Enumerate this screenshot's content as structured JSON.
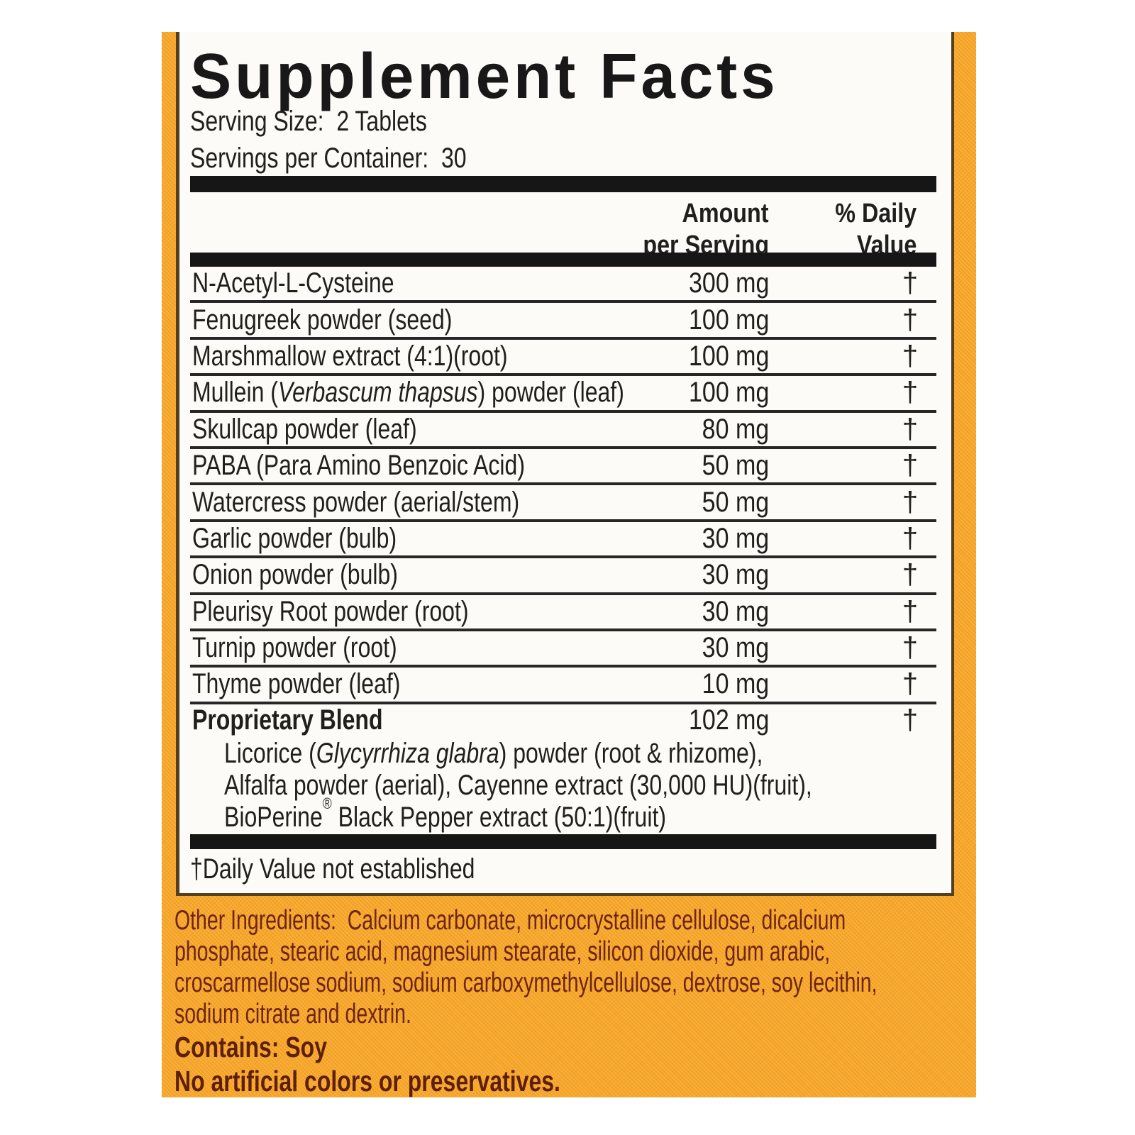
{
  "label": {
    "title": "Supplement Facts",
    "serving_size_line": "Serving Size:  2 Tablets",
    "servings_per_container_line": "Servings per Container:  30",
    "columns": {
      "amount_line1": "Amount",
      "amount_line2": "per Serving",
      "dv_line1": "% Daily",
      "dv_line2": "Value"
    },
    "rows": [
      {
        "pre": "N-Acetyl-L-Cysteine",
        "amt": "300 mg",
        "dv": "†"
      },
      {
        "pre": "Fenugreek powder (seed)",
        "amt": "100 mg",
        "dv": "†"
      },
      {
        "pre": "Marshmallow extract (4:1)(root)",
        "amt": "100 mg",
        "dv": "†"
      },
      {
        "pre": "Mullein (",
        "it": "Verbascum thapsus",
        "post": ") powder (leaf)",
        "amt": "100 mg",
        "dv": "†"
      },
      {
        "pre": "Skullcap powder (leaf)",
        "amt": "80 mg",
        "dv": "†"
      },
      {
        "pre": "PABA (Para Amino Benzoic Acid)",
        "amt": "50 mg",
        "dv": "†"
      },
      {
        "pre": "Watercress powder (aerial/stem)",
        "amt": "50 mg",
        "dv": "†"
      },
      {
        "pre": "Garlic powder (bulb)",
        "amt": "30 mg",
        "dv": "†"
      },
      {
        "pre": "Onion powder (bulb)",
        "amt": "30 mg",
        "dv": "†"
      },
      {
        "pre": "Pleurisy Root powder (root)",
        "amt": "30 mg",
        "dv": "†"
      },
      {
        "pre": "Turnip powder (root)",
        "amt": "30 mg",
        "dv": "†"
      },
      {
        "pre": "Thyme powder (leaf)",
        "amt": "10 mg",
        "dv": "†"
      }
    ],
    "proprietary_blend": {
      "name": "Proprietary Blend",
      "amt": "102 mg",
      "dv": "†",
      "lines": [
        {
          "pre": "Licorice (",
          "it": "Glycyrrhiza glabra",
          "post": ") powder (root & rhizome),"
        },
        {
          "pre": "Alfalfa powder (aerial), Cayenne extract (30,000 HU)(fruit),"
        },
        {
          "pre": "BioPerine",
          "sup": "®",
          "post": " Black Pepper extract (50:1)(fruit)"
        }
      ]
    },
    "footnote": "†Daily Value not established",
    "other_ingredients_lines": [
      "Other Ingredients:  Calcium carbonate, microcrystalline cellulose, dicalcium",
      "phosphate, stearic acid, magnesium stearate, silicon dioxide, gum arabic,",
      "croscarmellose sodium, sodium carboxymethylcellulose, dextrose, soy lecithin,",
      "sodium citrate and dextrin."
    ],
    "contains_statement": "Contains: Soy",
    "claim_statement": "No artificial colors or preservatives.",
    "colors": {
      "label_yellow": "#f6a52a",
      "panel_white": "#fcfbf7",
      "text_black": "#1f1f1d",
      "maroon_text": "#6e2410",
      "dark_claim_text": "#5e1f06",
      "panel_border_brown": "#54401f"
    }
  }
}
